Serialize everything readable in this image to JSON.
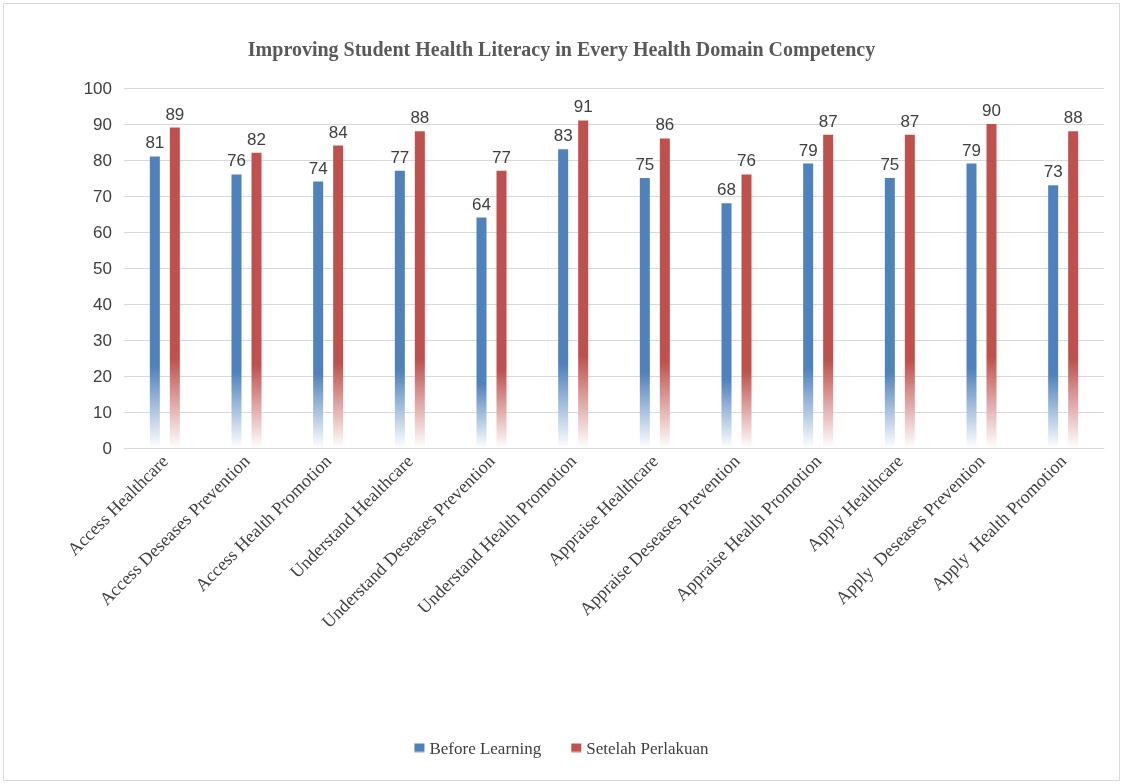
{
  "chart_data": {
    "type": "bar",
    "title": "Improving Student Health Literacy in Every Health Domain Competency",
    "categories": [
      "Access Healthcare",
      "Access Deseases Prevention",
      "Access Health Promotion",
      "Understand Healthcare",
      "Understand Deseases Prevention",
      "Understand Health Promotion",
      "Appraise Healthcare",
      "Appraise Deseases Prevention",
      "Appraise Health Promotion",
      "Apply Healthcare",
      "Apply  Deseases Prevention",
      "Apply  Health Promotion"
    ],
    "series": [
      {
        "name": "Before Learning",
        "color": "#4f81bd",
        "values": [
          81,
          76,
          74,
          77,
          64,
          83,
          75,
          68,
          79,
          75,
          79,
          73
        ]
      },
      {
        "name": "Setelah Perlakuan",
        "color": "#c0504d",
        "values": [
          89,
          82,
          84,
          88,
          77,
          91,
          86,
          76,
          87,
          87,
          90,
          88
        ]
      }
    ],
    "ylim": [
      0,
      100
    ],
    "yticks": [
      0,
      10,
      20,
      30,
      40,
      50,
      60,
      70,
      80,
      90,
      100
    ],
    "grid": "y",
    "legend": "bottom",
    "data_labels": true
  }
}
